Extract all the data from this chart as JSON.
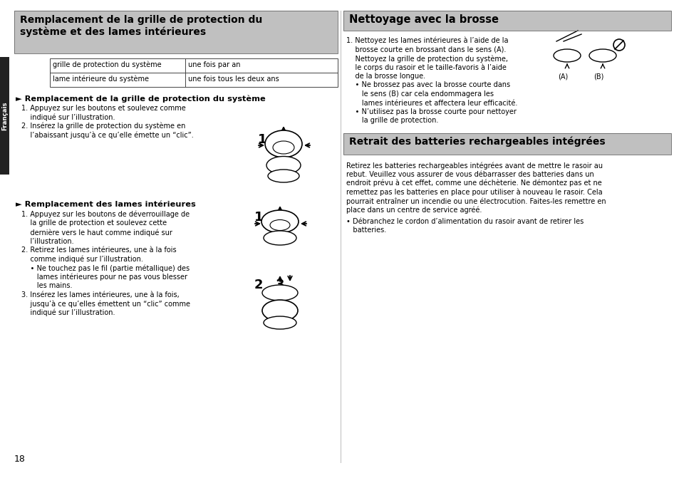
{
  "bg_color": "#ffffff",
  "left_header_bg": "#c0c0c0",
  "right_header_bg": "#c0c0c0",
  "text_color": "#000000",
  "sidebar_color": "#222222",
  "left_header": "Remplacement de la grille de protection du\nsystème et des lames intérieures",
  "table_row1_col1": "grille de protection du système",
  "table_row1_col2": "une fois par an",
  "table_row2_col1": "lame intérieure du système",
  "table_row2_col2": "une fois tous les deux ans",
  "subsection1_title": "► Remplacement de la grille de protection du système",
  "sub1_line1": "1. Appuyez sur les boutons et soulevez comme",
  "sub1_line2": "    indiqué sur l’illustration.",
  "sub1_line3": "2. Insérez la grille de protection du système en",
  "sub1_line4": "    l’abaissant jusqu’à ce qu’elle émette un “clic”.",
  "subsection2_title": "► Remplacement des lames intérieures",
  "sub2_line1": "1. Appuyez sur les boutons de déverrouillage de",
  "sub2_line2": "    la grille de protection et soulevez cette",
  "sub2_line3": "    dernière vers le haut comme indiqué sur",
  "sub2_line4": "    l’illustration.",
  "sub2_line5": "2. Retirez les lames intérieures, une à la fois",
  "sub2_line6": "    comme indiqué sur l’illustration.",
  "sub2_line7": "    • Ne touchez pas le fil (partie métallique) des",
  "sub2_line8": "       lames intérieures pour ne pas vous blesser",
  "sub2_line9": "       les mains.",
  "sub2_line10": "3. Insérez les lames intérieures, une à la fois,",
  "sub2_line11": "    jusqu’à ce qu’elles émettent un “clic” comme",
  "sub2_line12": "    indiqué sur l’illustration.",
  "right_header1": "Nettoyage avec la brosse",
  "rs1_line1": "1. Nettoyez les lames intérieures à l’aide de la",
  "rs1_line2": "    brosse courte en brossant dans le sens (A).",
  "rs1_line3": "    Nettoyez la grille de protection du système,",
  "rs1_line4": "    le corps du rasoir et le taille-favoris à l’aide",
  "rs1_line5": "    de la brosse longue.",
  "rs1_line6": "    • Ne brossez pas avec la brosse courte dans",
  "rs1_line7": "       le sens (B) car cela endommagera les",
  "rs1_line8": "       lames intérieures et affectera leur efficacité.",
  "rs1_line9": "    • N’utilisez pas la brosse courte pour nettoyer",
  "rs1_line10": "       la grille de protection.",
  "right_header2": "Retrait des batteries rechargeables intégrées",
  "rs2_line1": "Retirez les batteries rechargeables intégrées avant de mettre le rasoir au",
  "rs2_line2": "rebut. Veuillez vous assurer de vous débarrasser des batteries dans un",
  "rs2_line3": "endroit prévu à cet effet, comme une déchèterie. Ne démontez pas et ne",
  "rs2_line4": "remettez pas les batteries en place pour utiliser à nouveau le rasoir. Cela",
  "rs2_line5": "pourrait entraîner un incendie ou une électrocution. Faites-les remettre en",
  "rs2_line6": "place dans un centre de service agréé.",
  "rs2_line7": "• Débranchez le cordon d’alimentation du rasoir avant de retirer les",
  "rs2_line8": "   batteries.",
  "page_number": "18",
  "francais_label": "Français"
}
